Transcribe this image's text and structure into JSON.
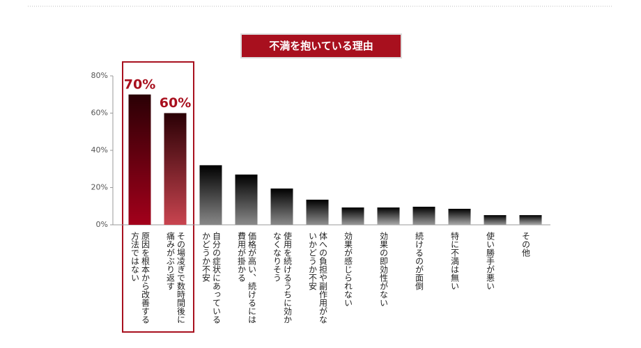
{
  "chart_data": {
    "type": "bar",
    "title": "不満を抱いている理由",
    "categories": [
      "原因を根本から改善する方法ではない",
      "その場凌ぎで数時間後に痛みがぶり返す",
      "自分の症状にあっているかどうか不安",
      "価格が高い、続けるには費用が掛かる",
      "使用を続けるうちに効かなくなりそう",
      "体への負担や副作用がないかどうか不安",
      "効果が感じられない",
      "効果の即効性がない",
      "続けるのが面倒",
      "特に不満は無い",
      "使い勝手が悪い",
      "その他"
    ],
    "values": [
      70,
      60,
      32,
      27,
      19.5,
      13.5,
      9.3,
      9.3,
      9.7,
      8.6,
      5.2,
      5.2
    ],
    "value_labels": [
      "70%",
      "60%",
      null,
      null,
      null,
      null,
      null,
      null,
      null,
      null,
      null,
      null
    ],
    "colors": [
      "#a3001b",
      "#c8444f",
      "#888888",
      "#8a8a8a",
      "#8a8a8a",
      "#909090",
      "#999999",
      "#aaaaaa",
      "#999999",
      "#aaaaaa",
      "#999999",
      "#aaaaaa"
    ],
    "ylim": [
      0,
      80
    ],
    "yticks": [
      {
        "value": 0,
        "label": "0%"
      },
      {
        "value": 20,
        "label": "20%"
      },
      {
        "value": 40,
        "label": "40%"
      },
      {
        "value": 60,
        "label": "60%"
      },
      {
        "value": 80,
        "label": "80%"
      }
    ],
    "grid": false
  }
}
